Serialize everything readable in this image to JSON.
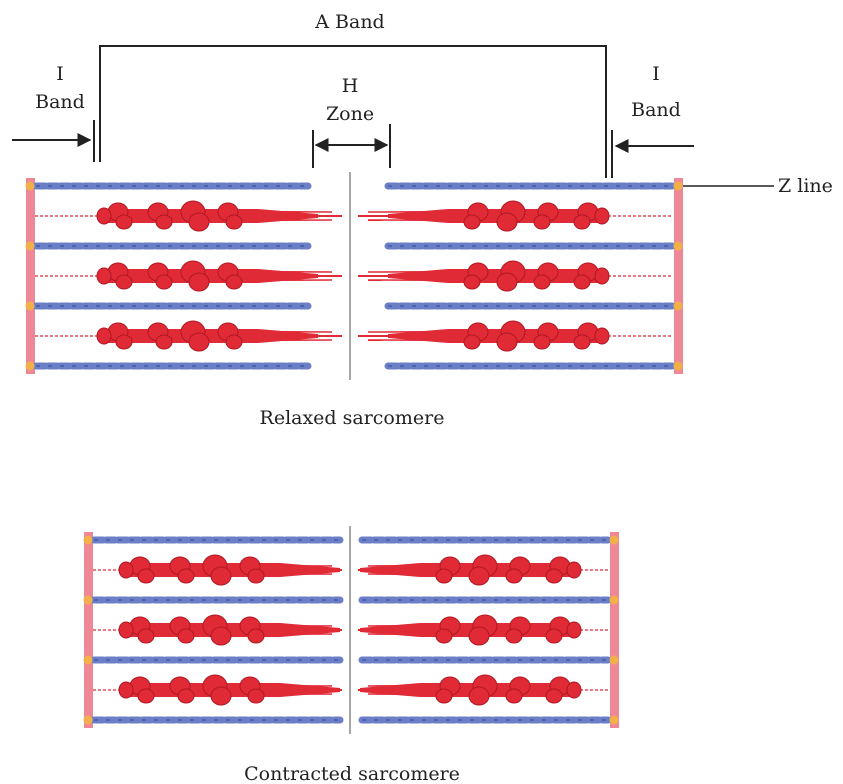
{
  "labels": {
    "a_band": "A Band",
    "i_band_left_1": "I",
    "i_band_left_2": "Band",
    "h_zone_1": "H",
    "h_zone_2": "Zone",
    "i_band_right_1": "I",
    "i_band_right_2": "Band",
    "z_line": "Z line"
  },
  "captions": {
    "relaxed": "Relaxed sarcomere",
    "contracted": "Contracted sarcomere"
  },
  "colors": {
    "actin": "#6b7fc6",
    "myosin": "#e02a36",
    "z_disc": "#ee8896",
    "z_node": "#f2b04a",
    "m_line": "#888888",
    "line": "#222222"
  }
}
